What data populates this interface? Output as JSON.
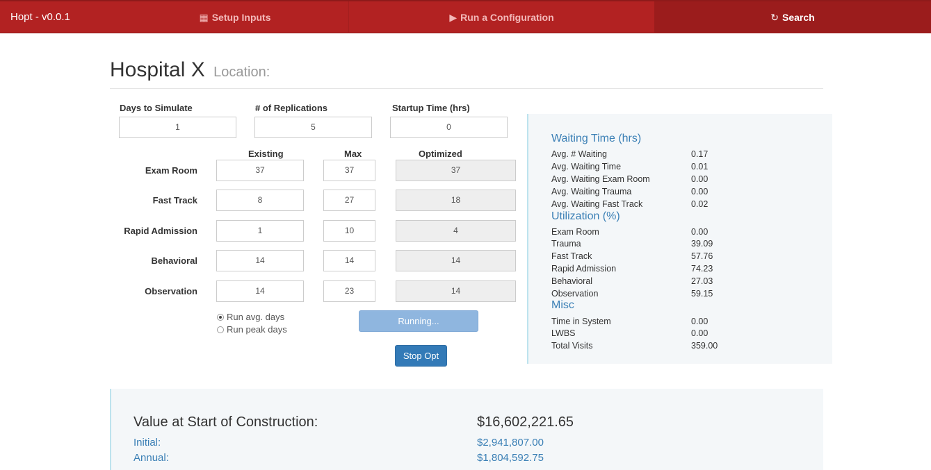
{
  "navbar": {
    "brand": "Hopt - v0.0.1",
    "setup_label": "Setup Inputs",
    "run_label": "Run a Configuration",
    "search_label": "Search"
  },
  "header": {
    "title": "Hospital X",
    "subtitle": "Location:"
  },
  "sim": {
    "days_label": "Days to Simulate",
    "days_value": "1",
    "reps_label": "# of Replications",
    "reps_value": "5",
    "startup_label": "Startup Time (hrs)",
    "startup_value": "0"
  },
  "resources": {
    "col_existing": "Existing",
    "col_max": "Max",
    "col_optimized": "Optimized",
    "rows": [
      {
        "label": "Exam Room",
        "existing": "37",
        "max": "37",
        "optimized": "37"
      },
      {
        "label": "Fast Track",
        "existing": "8",
        "max": "27",
        "optimized": "18"
      },
      {
        "label": "Rapid Admission",
        "existing": "1",
        "max": "10",
        "optimized": "4"
      },
      {
        "label": "Behavioral",
        "existing": "14",
        "max": "14",
        "optimized": "14"
      },
      {
        "label": "Observation",
        "existing": "14",
        "max": "23",
        "optimized": "14"
      }
    ]
  },
  "run_mode": {
    "avg_label": "Run avg. days",
    "peak_label": "Run peak days",
    "selected": "avg"
  },
  "buttons": {
    "running_label": "Running...",
    "stop_label": "Stop Opt"
  },
  "stats": {
    "waiting": {
      "heading": "Waiting Time (hrs)",
      "items": [
        {
          "label": "Avg. # Waiting",
          "value": "0.17"
        },
        {
          "label": "Avg. Waiting Time",
          "value": "0.01"
        },
        {
          "label": "Avg. Waiting Exam Room",
          "value": "0.00"
        },
        {
          "label": "Avg. Waiting Trauma",
          "value": "0.00"
        },
        {
          "label": "Avg. Waiting Fast Track",
          "value": "0.02"
        }
      ]
    },
    "utilization": {
      "heading": "Utilization (%)",
      "items": [
        {
          "label": "Exam Room",
          "value": "0.00"
        },
        {
          "label": "Trauma",
          "value": "39.09"
        },
        {
          "label": "Fast Track",
          "value": "57.76"
        },
        {
          "label": "Rapid Admission",
          "value": "74.23"
        },
        {
          "label": "Behavioral",
          "value": "27.03"
        },
        {
          "label": "Observation",
          "value": "59.15"
        }
      ]
    },
    "misc": {
      "heading": "Misc",
      "items": [
        {
          "label": "Time in System",
          "value": "0.00"
        },
        {
          "label": "LWBS",
          "value": "0.00"
        },
        {
          "label": "Total Visits",
          "value": "359.00"
        }
      ]
    }
  },
  "value": {
    "title": "Value at Start of Construction:",
    "total": "$16,602,221.65",
    "initial_label": "Initial:",
    "initial_value": "$2,941,807.00",
    "annual_label": "Annual:",
    "annual_value": "$1,804,592.75"
  }
}
